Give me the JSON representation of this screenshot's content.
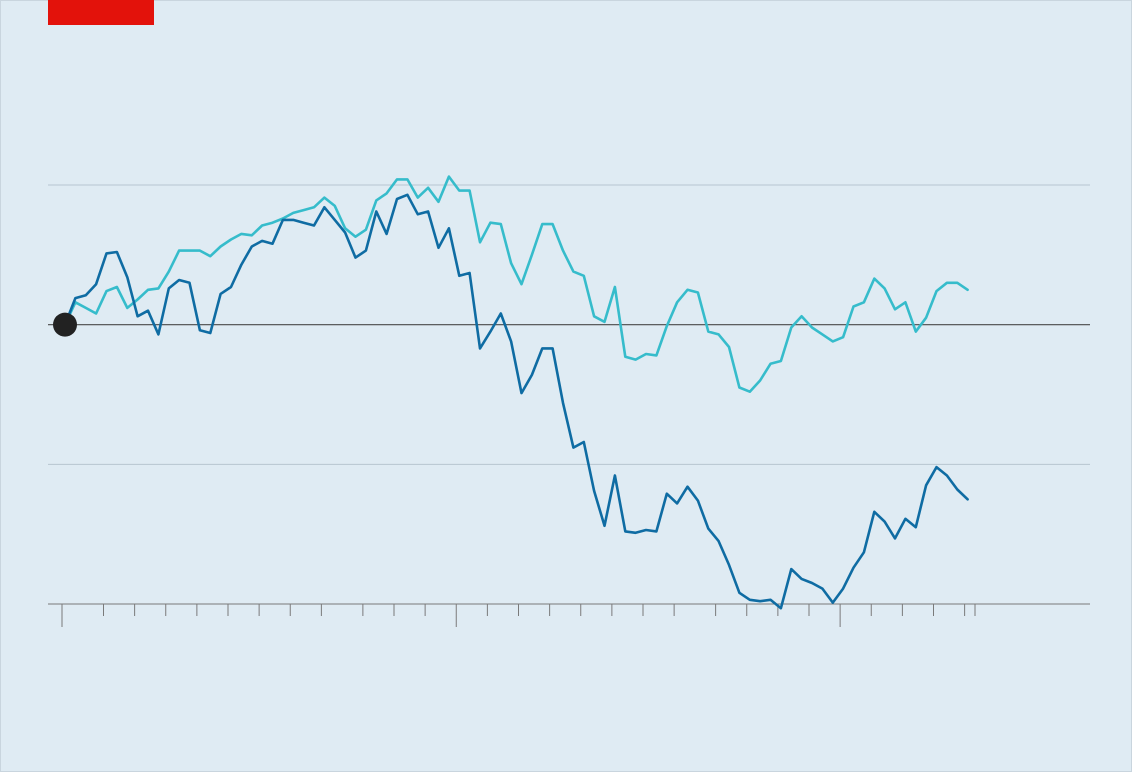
{
  "colors": {
    "background": "#dfebf3",
    "frame": "#c9d5de",
    "red_tag": "#e3120b",
    "gridline": "#b7c6d0",
    "zero_line": "#4a4a4a",
    "axis": "#7a7a7a",
    "series_dark": "#0f6ca3",
    "series_light": "#36bccb",
    "origin_dot": "#222222"
  },
  "chart_data": {
    "type": "line",
    "title": "",
    "xlabel": "",
    "ylabel": "",
    "grid": true,
    "x_range": [
      0,
      88
    ],
    "ylim": [
      -2,
      1
    ],
    "gridlines": [
      1,
      0,
      -1,
      -2
    ],
    "zero_line": 0,
    "start_marker": {
      "x": 0,
      "y": 0
    },
    "x_ticks": [
      0,
      4,
      7,
      10,
      13,
      16,
      19,
      22,
      25,
      29,
      32,
      35,
      38,
      41,
      44,
      47,
      50,
      53,
      56,
      59,
      63,
      66,
      69,
      72,
      75,
      78,
      81,
      84,
      87,
      88
    ],
    "x_ticks_major": [
      0,
      38,
      75
    ],
    "series": [
      {
        "style": "dark",
        "x": [
          0,
          1,
          2,
          3,
          4,
          5,
          6,
          7,
          8,
          9,
          10,
          11,
          12,
          13,
          14,
          15,
          16,
          17,
          18,
          19,
          20,
          21,
          22,
          23,
          24,
          25,
          26,
          27,
          28,
          29,
          30,
          31,
          32,
          33,
          34,
          35,
          36,
          37,
          38,
          39,
          40,
          41,
          42,
          43,
          44,
          45,
          46,
          47,
          48,
          49,
          50,
          51,
          52,
          53,
          54,
          55,
          56,
          57,
          58,
          59,
          60,
          61,
          62,
          63,
          64,
          65,
          66,
          67,
          68,
          69,
          70,
          71,
          72,
          73,
          74,
          75,
          76,
          77,
          78,
          79,
          80,
          81,
          82,
          83,
          84,
          85,
          86,
          87
        ],
        "y": [
          0,
          0.19,
          0.21,
          0.29,
          0.51,
          0.52,
          0.34,
          0.06,
          0.1,
          -0.07,
          0.26,
          0.32,
          0.3,
          -0.04,
          -0.06,
          0.22,
          0.27,
          0.43,
          0.56,
          0.6,
          0.58,
          0.75,
          0.75,
          0.73,
          0.71,
          0.84,
          0.75,
          0.66,
          0.48,
          0.53,
          0.81,
          0.65,
          0.9,
          0.93,
          0.79,
          0.81,
          0.55,
          0.69,
          0.35,
          0.37,
          -0.17,
          -0.05,
          0.08,
          -0.12,
          -0.49,
          -0.36,
          -0.17,
          -0.17,
          -0.56,
          -0.88,
          -0.84,
          -1.19,
          -1.44,
          -1.08,
          -1.48,
          -1.49,
          -1.47,
          -1.48,
          -1.21,
          -1.28,
          -1.16,
          -1.26,
          -1.46,
          -1.55,
          -1.72,
          -1.92,
          -1.97,
          -1.98,
          -1.97,
          -2.03,
          -1.75,
          -1.82,
          -1.85,
          -1.89,
          -1.99,
          -1.89,
          -1.74,
          -1.63,
          -1.34,
          -1.41,
          -1.53,
          -1.39,
          -1.45,
          -1.15,
          -1.02,
          -1.08,
          -1.18,
          -1.25
        ]
      },
      {
        "style": "light",
        "x": [
          0,
          1,
          2,
          3,
          4,
          5,
          6,
          7,
          8,
          9,
          10,
          11,
          12,
          13,
          14,
          15,
          16,
          17,
          18,
          19,
          20,
          21,
          22,
          23,
          24,
          25,
          26,
          27,
          28,
          29,
          30,
          31,
          32,
          33,
          34,
          35,
          36,
          37,
          38,
          39,
          40,
          41,
          42,
          43,
          44,
          45,
          46,
          47,
          48,
          49,
          50,
          51,
          52,
          53,
          54,
          55,
          56,
          57,
          58,
          59,
          60,
          61,
          62,
          63,
          64,
          65,
          66,
          67,
          68,
          69,
          70,
          71,
          72,
          73,
          74,
          75,
          76,
          77,
          78,
          79,
          80,
          81,
          82,
          83,
          84,
          85,
          86,
          87
        ],
        "y": [
          0,
          0.16,
          0.12,
          0.08,
          0.24,
          0.27,
          0.12,
          0.18,
          0.25,
          0.26,
          0.38,
          0.53,
          0.53,
          0.53,
          0.49,
          0.56,
          0.61,
          0.65,
          0.64,
          0.71,
          0.73,
          0.76,
          0.8,
          0.82,
          0.84,
          0.91,
          0.85,
          0.69,
          0.63,
          0.68,
          0.89,
          0.94,
          1.04,
          1.04,
          0.91,
          0.98,
          0.88,
          1.06,
          0.96,
          0.96,
          0.59,
          0.73,
          0.72,
          0.44,
          0.29,
          0.5,
          0.72,
          0.72,
          0.53,
          0.38,
          0.35,
          0.06,
          0.02,
          0.27,
          -0.23,
          -0.25,
          -0.21,
          -0.22,
          -0.01,
          0.16,
          0.25,
          0.23,
          -0.05,
          -0.07,
          -0.16,
          -0.45,
          -0.48,
          -0.4,
          -0.28,
          -0.26,
          -0.02,
          0.06,
          -0.02,
          -0.07,
          -0.12,
          -0.09,
          0.13,
          0.16,
          0.33,
          0.26,
          0.11,
          0.16,
          -0.05,
          0.05,
          0.24,
          0.3,
          0.3,
          0.25
        ]
      }
    ]
  }
}
